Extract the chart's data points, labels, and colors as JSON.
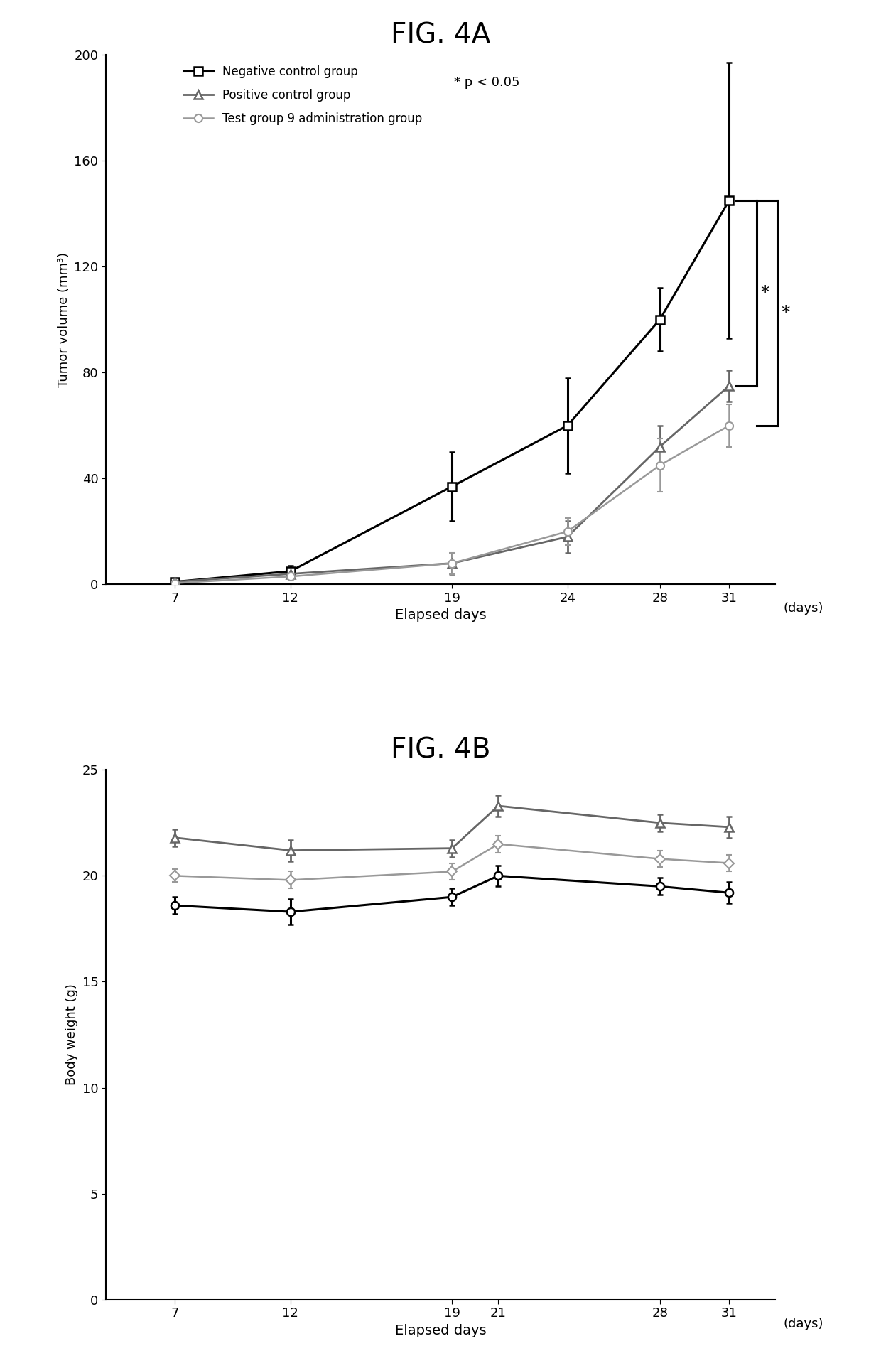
{
  "fig4a": {
    "title": "FIG. 4A",
    "xlabel": "Elapsed days",
    "ylabel": "Tumor volume (mm³)",
    "x_ticks": [
      7,
      12,
      19,
      24,
      28,
      31
    ],
    "x_tick_labels": [
      "7",
      "12",
      "19",
      "24",
      "28",
      "31"
    ],
    "xlim": [
      4,
      33
    ],
    "ylim": [
      0,
      200
    ],
    "y_ticks": [
      0,
      40,
      80,
      120,
      160,
      200
    ],
    "days_label": "(days)",
    "negative_control": {
      "x": [
        7,
        12,
        19,
        24,
        28,
        31
      ],
      "y": [
        1,
        5,
        37,
        60,
        100,
        145
      ],
      "yerr": [
        1,
        2,
        13,
        18,
        12,
        52
      ],
      "label": "Negative control group",
      "color": "#000000",
      "marker": "s",
      "markersize": 8,
      "linewidth": 2.2
    },
    "positive_control": {
      "x": [
        7,
        12,
        19,
        24,
        28,
        31
      ],
      "y": [
        1,
        4,
        8,
        18,
        52,
        75
      ],
      "yerr": [
        0.5,
        1.5,
        4,
        6,
        8,
        6
      ],
      "label": "Positive control group",
      "color": "#666666",
      "marker": "^",
      "markersize": 8,
      "linewidth": 2.0
    },
    "test_group": {
      "x": [
        7,
        12,
        19,
        24,
        28,
        31
      ],
      "y": [
        0.5,
        3,
        8,
        20,
        45,
        60
      ],
      "yerr": [
        0.5,
        1,
        4,
        5,
        10,
        8
      ],
      "label": "Test group 9 administration group",
      "color": "#999999",
      "marker": "o",
      "markersize": 8,
      "linewidth": 1.8
    },
    "p_annotation": "* p < 0.05",
    "bracket_y_neg": 145,
    "bracket_y_pos": 75,
    "bracket_y_test": 60
  },
  "fig4b": {
    "title": "FIG. 4B",
    "xlabel": "Elapsed days",
    "ylabel": "Body weight (g)",
    "x_ticks": [
      7,
      12,
      19,
      21,
      28,
      31
    ],
    "x_tick_labels": [
      "7",
      "12",
      "19",
      "21",
      "28",
      "31"
    ],
    "xlim": [
      4,
      33
    ],
    "ylim": [
      0,
      25
    ],
    "y_ticks": [
      0,
      5,
      10,
      15,
      20,
      25
    ],
    "days_label": "(days)",
    "negative_control": {
      "x": [
        7,
        12,
        19,
        21,
        28,
        31
      ],
      "y": [
        18.6,
        18.3,
        19.0,
        20.0,
        19.5,
        19.2
      ],
      "yerr": [
        0.4,
        0.6,
        0.4,
        0.5,
        0.4,
        0.5
      ],
      "label": "Negative control group",
      "color": "#000000",
      "marker": "o",
      "markersize": 8,
      "linewidth": 2.2
    },
    "positive_control": {
      "x": [
        7,
        12,
        19,
        21,
        28,
        31
      ],
      "y": [
        21.8,
        21.2,
        21.3,
        23.3,
        22.5,
        22.3
      ],
      "yerr": [
        0.4,
        0.5,
        0.4,
        0.5,
        0.4,
        0.5
      ],
      "label": "Positive control group",
      "color": "#666666",
      "marker": "^",
      "markersize": 8,
      "linewidth": 2.0
    },
    "test_group": {
      "x": [
        7,
        12,
        19,
        21,
        28,
        31
      ],
      "y": [
        20.0,
        19.8,
        20.2,
        21.5,
        20.8,
        20.6
      ],
      "yerr": [
        0.3,
        0.4,
        0.4,
        0.4,
        0.4,
        0.4
      ],
      "label": "Test group 9 administration group",
      "color": "#999999",
      "marker": "D",
      "markersize": 7,
      "linewidth": 1.8
    }
  }
}
